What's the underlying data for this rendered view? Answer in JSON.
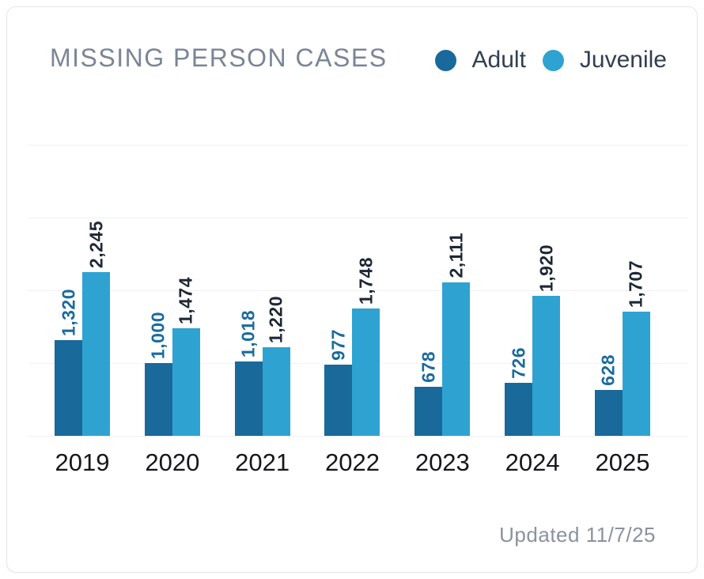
{
  "card": {
    "title": "MISSING PERSON CASES",
    "updated": "Updated 11/7/25"
  },
  "legend": {
    "items": [
      {
        "label": "Adult",
        "color": "#19699a"
      },
      {
        "label": "Juvenile",
        "color": "#2ea3d1"
      }
    ]
  },
  "chart_data": {
    "type": "bar",
    "title": "MISSING PERSON CASES",
    "categories": [
      "2019",
      "2020",
      "2021",
      "2022",
      "2023",
      "2024",
      "2025"
    ],
    "series": [
      {
        "name": "Adult",
        "color": "#19699a",
        "label_color": "#1a6b9e",
        "values": [
          1320,
          1000,
          1018,
          977,
          678,
          726,
          628
        ],
        "labels": [
          "1,320",
          "1,000",
          "1,018",
          "977",
          "678",
          "726",
          "628"
        ]
      },
      {
        "name": "Juvenile",
        "color": "#2ea3d1",
        "label_color": "#1e2735",
        "values": [
          2245,
          1474,
          1220,
          1748,
          2111,
          1920,
          1707
        ],
        "labels": [
          "2,245",
          "1,474",
          "1,220",
          "1,748",
          "2,111",
          "1,920",
          "1,707"
        ]
      }
    ],
    "xlabel": "",
    "ylabel": "",
    "ylim": [
      0,
      4000
    ],
    "gridline_values": [
      0,
      1000,
      2000,
      3000,
      4000
    ],
    "grid": true,
    "legend_position": "top-right",
    "value_labels": "rotated-vertical",
    "annotation": "Updated 11/7/25"
  }
}
